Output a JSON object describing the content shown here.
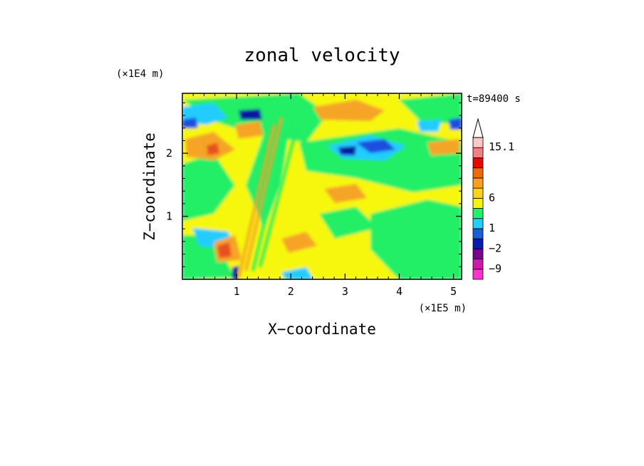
{
  "chart_data": {
    "type": "heatmap",
    "title": "zonal velocity",
    "xlabel": "X−coordinate",
    "ylabel": "Z−coordinate",
    "x_unit": "(×1E5 m)",
    "y_unit": "(×1E4 m)",
    "time_label": "t=89400 s",
    "xlim": [
      0,
      5.15
    ],
    "ylim": [
      0,
      2.95
    ],
    "x_ticks": [
      1,
      2,
      3,
      4,
      5
    ],
    "y_ticks": [
      1,
      2
    ],
    "colorbar": {
      "labeled_levels": [
        "15.1",
        "6",
        "1",
        "−2",
        "−9"
      ],
      "colors": [
        "#ff33cc",
        "#cc1aaa",
        "#7a0090",
        "#0a1ab0",
        "#1a5fd8",
        "#20d0ff",
        "#20f070",
        "#f5f50a",
        "#ffd21a",
        "#ffa01a",
        "#f06a0a",
        "#e60a00",
        "#f48080",
        "#ffc8c8"
      ]
    },
    "palette": {
      "green": "#22ee66",
      "yellow": "#f7f70a",
      "cyan": "#22ccff",
      "orange": "#f5a428",
      "red": "#e85020",
      "blue": "#1a4fe0",
      "navy": "#0a14a0"
    }
  }
}
